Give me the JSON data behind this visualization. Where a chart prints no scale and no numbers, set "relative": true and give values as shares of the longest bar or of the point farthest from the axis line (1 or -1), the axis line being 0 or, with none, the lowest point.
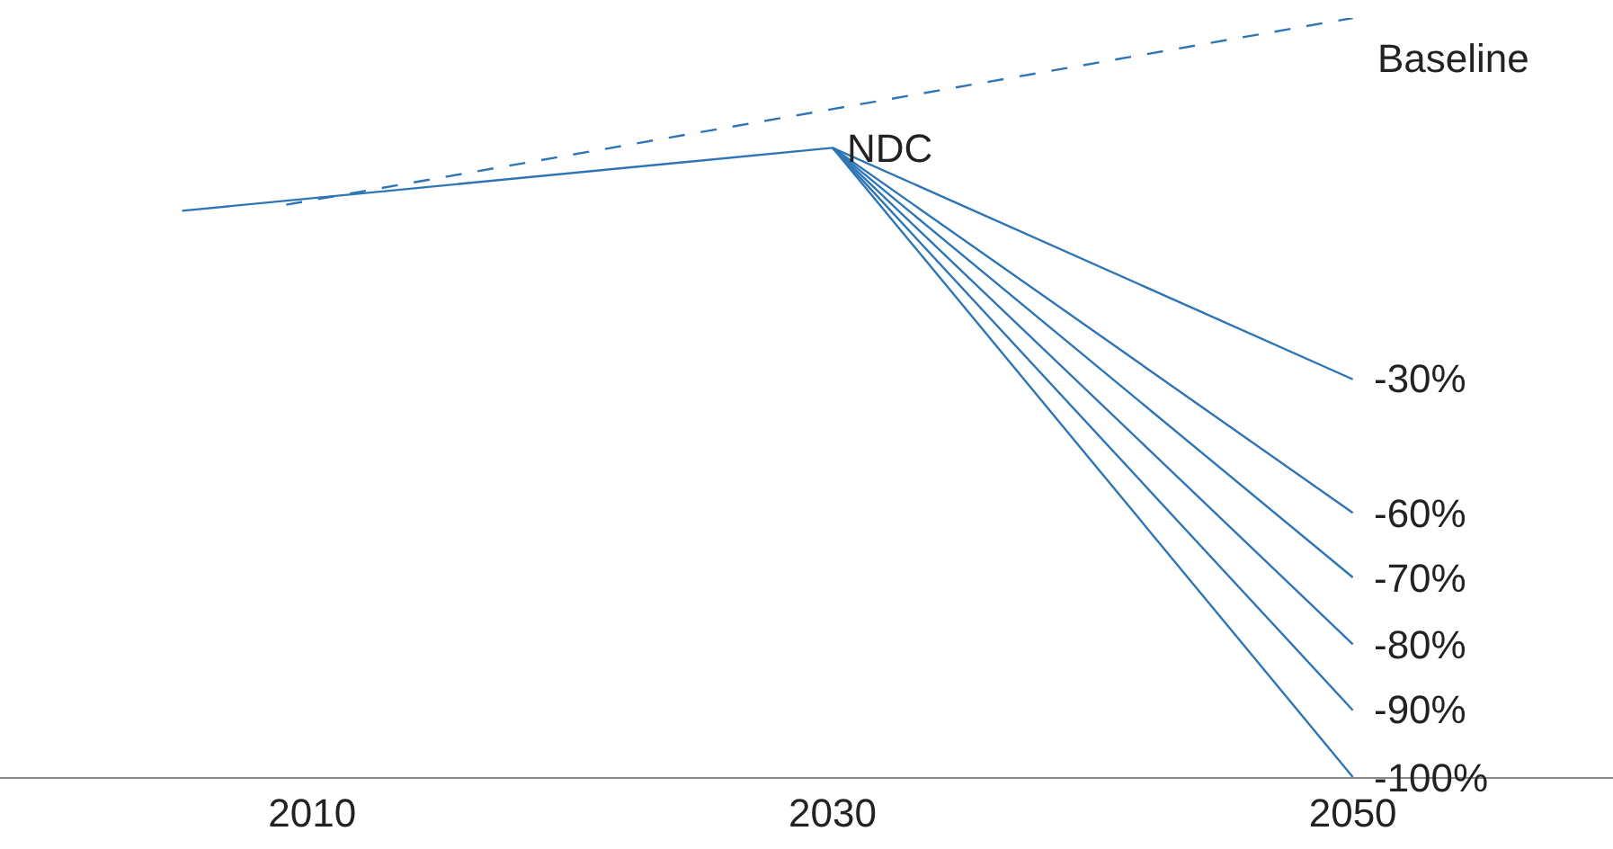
{
  "chart_data": {
    "type": "line",
    "relative": true,
    "xlim": [
      1998,
      2060
    ],
    "xticks": [
      2010,
      2030,
      2050
    ],
    "legend": false,
    "marker": "none",
    "series": [
      {
        "name": "Baseline",
        "color": "#2e75b6",
        "line_style": "dashed",
        "x": [
          2009,
          2050
        ],
        "values": [
          0.754,
          1.0
        ]
      },
      {
        "name": "NDC",
        "color": "#2e75b6",
        "x": [
          2005,
          2030
        ],
        "values": [
          0.746,
          0.829
        ]
      },
      {
        "name": "-30%",
        "color": "#2e75b6",
        "x": [
          2030,
          2050
        ],
        "values": [
          0.829,
          0.524
        ]
      },
      {
        "name": "-60%",
        "color": "#2e75b6",
        "x": [
          2030,
          2050
        ],
        "values": [
          0.829,
          0.348
        ]
      },
      {
        "name": "-70%",
        "color": "#2e75b6",
        "x": [
          2030,
          2050
        ],
        "values": [
          0.829,
          0.263
        ]
      },
      {
        "name": "-80%",
        "color": "#2e75b6",
        "x": [
          2030,
          2050
        ],
        "values": [
          0.829,
          0.175
        ]
      },
      {
        "name": "-90%",
        "color": "#2e75b6",
        "x": [
          2030,
          2050
        ],
        "values": [
          0.829,
          0.088
        ]
      },
      {
        "name": "-100%",
        "color": "#2e75b6",
        "x": [
          2030,
          2050
        ],
        "values": [
          0.829,
          0.0
        ]
      }
    ]
  }
}
